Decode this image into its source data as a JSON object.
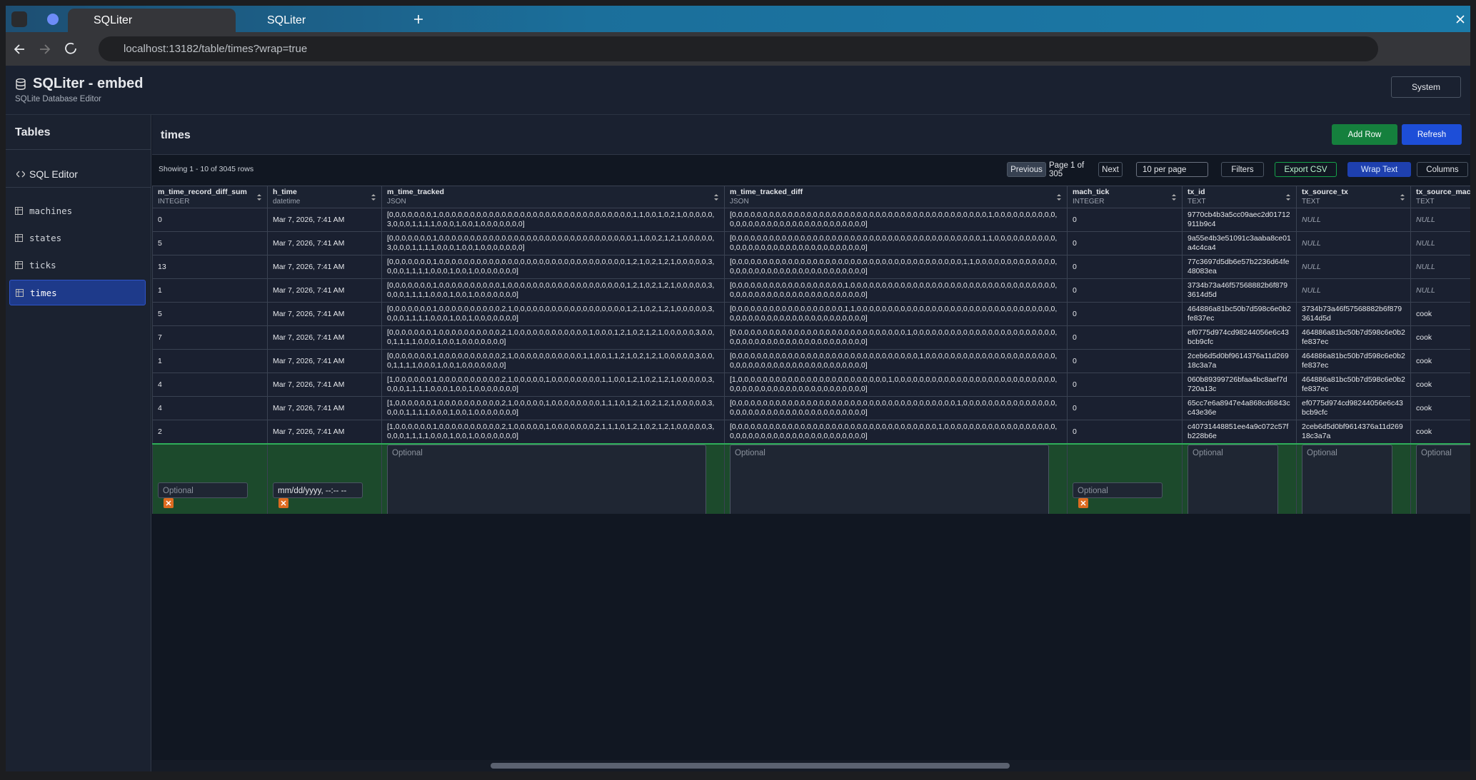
{
  "browser": {
    "tabs": [
      "SQLiter",
      "SQLiter"
    ],
    "url": "localhost:13182/table/times?wrap=true"
  },
  "header": {
    "title": "SQLiter - embed",
    "subtitle": "SQLite Database Editor",
    "theme": "System"
  },
  "sidebar": {
    "heading": "Tables",
    "sql_editor": "SQL Editor",
    "tables": [
      "machines",
      "states",
      "ticks",
      "times"
    ]
  },
  "main": {
    "table_name": "times",
    "add_row": "Add Row",
    "refresh": "Refresh"
  },
  "toolbar": {
    "showing": "Showing 1 - 10 of 3045 rows",
    "previous": "Previous",
    "page": "Page 1 of 305",
    "next": "Next",
    "per_page": "10 per page",
    "filters": "Filters",
    "export_csv": "Export CSV",
    "wrap_text": "Wrap Text",
    "columns": "Columns"
  },
  "table": {
    "columns": [
      {
        "name": "m_time_record_diff_sum",
        "type": "INTEGER"
      },
      {
        "name": "h_time",
        "type": "datetime"
      },
      {
        "name": "m_time_tracked",
        "type": "JSON"
      },
      {
        "name": "m_time_tracked_diff",
        "type": "JSON"
      },
      {
        "name": "mach_tick",
        "type": "INTEGER"
      },
      {
        "name": "tx_id",
        "type": "TEXT"
      },
      {
        "name": "tx_source_tx",
        "type": "TEXT"
      },
      {
        "name": "tx_source_machine",
        "type": "TEXT"
      }
    ],
    "rows": [
      [
        "0",
        "Mar 7, 2026, 7:41 AM",
        "[0,0,0,0,0,0,0,1,0,0,0,0,0,0,0,0,0,0,0,0,0,0,0,0,0,0,0,0,0,0,0,0,0,0,0,0,0,0,0,1,1,0,0,1,0,2,1,0,0,0,0,0,3,0,0,0,1,1,1,1,0,0,0,1,0,0,1,0,0,0,0,0,0,0]",
        "[0,0,0,0,0,0,0,0,0,0,0,0,0,0,0,0,0,0,0,0,0,0,0,0,0,0,0,0,0,0,0,0,0,0,0,0,0,0,0,0,0,1,0,0,0,0,0,0,0,0,0,0,0,0,0,0,0,0,0,0,0,0,0,0,0,0,0,0,0,0,0,0,0,0]",
        "0",
        "9770cb4b3a5cc09aec2d01712911b9c4",
        "NULL",
        "NULL"
      ],
      [
        "5",
        "Mar 7, 2026, 7:41 AM",
        "[0,0,0,0,0,0,0,1,0,0,0,0,0,0,0,0,0,0,0,0,0,0,0,0,0,0,0,0,0,0,0,0,0,0,0,0,0,0,0,1,1,0,0,2,1,2,1,0,0,0,0,0,3,0,0,0,1,1,1,1,0,0,0,1,0,0,1,0,0,0,0,0,0,0]",
        "[0,0,0,0,0,0,0,0,0,0,0,0,0,0,0,0,0,0,0,0,0,0,0,0,0,0,0,0,0,0,0,0,0,0,0,0,0,0,0,0,1,1,0,0,0,0,0,0,0,0,0,0,0,0,0,0,0,0,0,0,0,0,0,0,0,0,0,0,0,0,0,0,0,0]",
        "0",
        "9a55e4b3e51091c3aaba8ce01a4c4ca4",
        "NULL",
        "NULL"
      ],
      [
        "13",
        "Mar 7, 2026, 7:41 AM",
        "[0,0,0,0,0,0,0,1,0,0,0,0,0,0,0,0,0,0,0,0,0,0,0,0,0,0,0,0,0,0,0,0,0,0,0,0,0,0,1,2,1,0,2,1,2,1,0,0,0,0,0,3,0,0,0,1,1,1,1,0,0,0,1,0,0,1,0,0,0,0,0,0,0]",
        "[0,0,0,0,0,0,0,0,0,0,0,0,0,0,0,0,0,0,0,0,0,0,0,0,0,0,0,0,0,0,0,0,0,0,0,0,0,1,1,0,0,0,0,0,0,0,0,0,0,0,0,0,0,0,0,0,0,0,0,0,0,0,0,0,0,0,0,0,0,0,0,0,0,0]",
        "0",
        "77c3697d5db6e57b2236d64fe48083ea",
        "NULL",
        "NULL"
      ],
      [
        "1",
        "Mar 7, 2026, 7:41 AM",
        "[0,0,0,0,0,0,0,1,0,0,0,0,0,0,0,0,0,0,1,0,0,0,0,0,0,0,0,0,0,0,0,0,0,0,0,0,0,0,1,2,1,0,2,1,2,1,0,0,0,0,0,3,0,0,0,1,1,1,1,0,0,0,1,0,0,1,0,0,0,0,0,0,0]",
        "[0,0,0,0,0,0,0,0,0,0,0,0,0,0,0,0,0,0,1,0,0,0,0,0,0,0,0,0,0,0,0,0,0,0,0,0,0,0,0,0,0,0,0,0,0,0,0,0,0,0,0,0,0,0,0,0,0,0,0,0,0,0,0,0,0,0,0,0,0,0,0,0,0,0]",
        "0",
        "3734b73a46f57568882b6f8793614d5d",
        "NULL",
        "NULL"
      ],
      [
        "5",
        "Mar 7, 2026, 7:41 AM",
        "[0,0,0,0,0,0,0,1,0,0,0,0,0,0,0,0,0,0,2,1,0,0,0,0,0,0,0,0,0,0,0,0,0,0,0,0,0,0,1,2,1,0,2,1,2,1,0,0,0,0,0,3,0,0,0,1,1,1,1,0,0,0,1,0,0,1,0,0,0,0,0,0,0]",
        "[0,0,0,0,0,0,0,0,0,0,0,0,0,0,0,0,0,0,1,1,0,0,0,0,0,0,0,0,0,0,0,0,0,0,0,0,0,0,0,0,0,0,0,0,0,0,0,0,0,0,0,0,0,0,0,0,0,0,0,0,0,0,0,0,0,0,0,0,0,0,0,0,0,0]",
        "0",
        "464886a81bc50b7d598c6e0b2fe837ec",
        "3734b73a46f57568882b6f8793614d5d",
        "cook"
      ],
      [
        "7",
        "Mar 7, 2026, 7:41 AM",
        "[0,0,0,0,0,0,0,1,0,0,0,0,0,0,0,0,0,0,2,1,0,0,0,0,0,0,0,0,0,0,0,0,1,0,0,0,1,2,1,0,2,1,2,1,0,0,0,0,0,3,0,0,0,1,1,1,1,0,0,0,1,0,0,1,0,0,0,0,0,0,0]",
        "[0,0,0,0,0,0,0,0,0,0,0,0,0,0,0,0,0,0,0,0,0,0,0,0,0,0,0,0,1,0,0,0,0,0,0,0,0,0,0,0,0,0,0,0,0,0,0,0,0,0,0,0,0,0,0,0,0,0,0,0,0,0,0,0,0,0,0,0,0,0,0,0,0,0]",
        "0",
        "ef0775d974cd98244056e6c43bcb9cfc",
        "464886a81bc50b7d598c6e0b2fe837ec",
        "cook"
      ],
      [
        "1",
        "Mar 7, 2026, 7:41 AM",
        "[0,0,0,0,0,0,0,1,0,0,0,0,0,0,0,0,0,0,2,1,0,0,0,0,0,0,0,0,0,0,0,1,1,0,0,1,1,2,1,0,2,1,2,1,0,0,0,0,0,3,0,0,0,1,1,1,1,0,0,0,1,0,0,1,0,0,0,0,0,0,0]",
        "[0,0,0,0,0,0,0,0,0,0,0,0,0,0,0,0,0,0,0,0,0,0,0,0,0,0,0,0,0,0,1,0,0,0,0,0,0,0,0,0,0,0,0,0,0,0,0,0,0,0,0,0,0,0,0,0,0,0,0,0,0,0,0,0,0,0,0,0,0,0,0,0,0,0]",
        "0",
        "2ceb6d5d0bf9614376a11d26918c3a7a",
        "464886a81bc50b7d598c6e0b2fe837ec",
        "cook"
      ],
      [
        "4",
        "Mar 7, 2026, 7:41 AM",
        "[1,0,0,0,0,0,0,1,0,0,0,0,0,0,0,0,0,0,2,1,0,0,0,0,0,1,0,0,0,0,0,0,0,0,1,1,0,0,1,2,1,0,2,1,2,1,0,0,0,0,0,3,0,0,0,1,1,1,1,0,0,0,1,0,0,1,0,0,0,0,0,0,0]",
        "[1,0,0,0,0,0,0,0,0,0,0,0,0,0,0,0,0,0,0,0,0,0,0,0,0,1,0,0,0,0,0,0,0,0,0,0,0,0,0,0,0,0,0,0,0,0,0,0,0,0,0,0,0,0,0,0,0,0,0,0,0,0,0,0,0,0,0,0,0,0,0,0,0,0]",
        "0",
        "060b89399726bfaa4bc8aef7d720a13c",
        "464886a81bc50b7d598c6e0b2fe837ec",
        "cook"
      ],
      [
        "4",
        "Mar 7, 2026, 7:41 AM",
        "[1,0,0,0,0,0,0,1,0,0,0,0,0,0,0,0,0,0,2,1,0,0,0,0,0,1,0,0,0,0,0,0,0,0,1,1,1,0,1,2,1,0,2,1,2,1,0,0,0,0,0,3,0,0,0,1,1,1,1,0,0,0,1,0,0,1,0,0,0,0,0,0,0]",
        "[0,0,0,0,0,0,0,0,0,0,0,0,0,0,0,0,0,0,0,0,0,0,0,0,0,0,0,0,0,0,0,0,0,0,0,0,1,0,0,0,0,0,0,0,0,0,0,0,0,0,0,0,0,0,0,0,0,0,0,0,0,0,0,0,0,0,0,0,0,0,0,0,0,0]",
        "0",
        "65cc7e6a8947e4a868cd6843cc43e36e",
        "ef0775d974cd98244056e6c43bcb9cfc",
        "cook"
      ],
      [
        "2",
        "Mar 7, 2026, 7:41 AM",
        "[1,0,0,0,0,0,0,1,0,0,0,0,0,0,0,0,0,0,2,1,0,0,0,0,0,1,0,0,0,0,0,0,0,2,1,1,1,0,1,2,1,0,2,1,2,1,0,0,0,0,0,3,0,0,0,1,1,1,1,0,0,0,1,0,0,1,0,0,0,0,0,0,0]",
        "[0,0,0,0,0,0,0,0,0,0,0,0,0,0,0,0,0,0,0,0,0,0,0,0,0,0,0,0,0,0,0,0,0,1,0,0,0,0,0,0,0,0,0,0,0,0,0,0,0,0,0,0,0,0,0,0,0,0,0,0,0,0,0,0,0,0,0,0,0,0,0,0,0,0]",
        "0",
        "c40731448851ee4a9c072c57fb228b6e",
        "2ceb6d5d0bf9614376a11d26918c3a7a",
        "cook"
      ]
    ],
    "new_row": {
      "placeholder": "Optional",
      "datetime_placeholder": "mm/dd/yyyy, --:-- --"
    }
  }
}
